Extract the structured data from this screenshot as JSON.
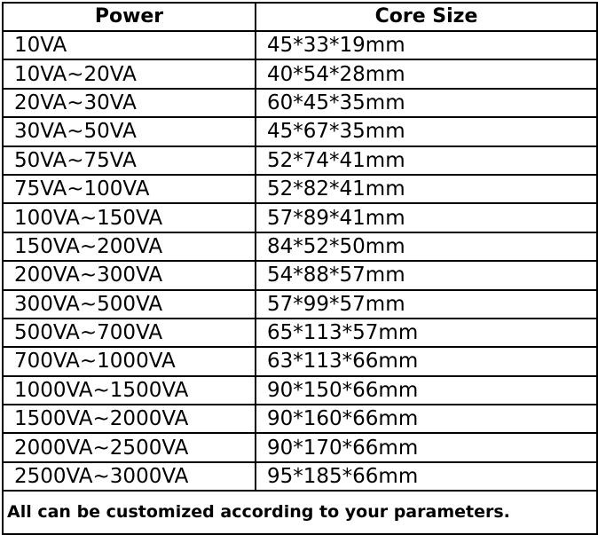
{
  "table": {
    "header": [
      "Power",
      "Core Size"
    ],
    "rows": [
      [
        "10VA",
        "45*33*19mm"
      ],
      [
        "10VA~20VA",
        "40*54*28mm"
      ],
      [
        "20VA~30VA",
        "60*45*35mm"
      ],
      [
        "30VA~50VA",
        "45*67*35mm"
      ],
      [
        "50VA~75VA",
        "52*74*41mm"
      ],
      [
        "75VA~100VA",
        "52*82*41mm"
      ],
      [
        "100VA~150VA",
        "57*89*41mm"
      ],
      [
        "150VA~200VA",
        "84*52*50mm"
      ],
      [
        "200VA~300VA",
        "54*88*57mm"
      ],
      [
        "300VA~500VA",
        "57*99*57mm"
      ],
      [
        "500VA~700VA",
        "65*113*57mm"
      ],
      [
        "700VA~1000VA",
        "63*113*66mm"
      ],
      [
        "1000VA~1500VA",
        "90*150*66mm"
      ],
      [
        "1500VA~2000VA",
        "90*160*66mm"
      ],
      [
        "2000VA~2500VA",
        "90*170*66mm"
      ],
      [
        "2500VA~3000VA",
        "95*185*66mm"
      ]
    ],
    "footer": "All can be customized according to your parameters."
  }
}
